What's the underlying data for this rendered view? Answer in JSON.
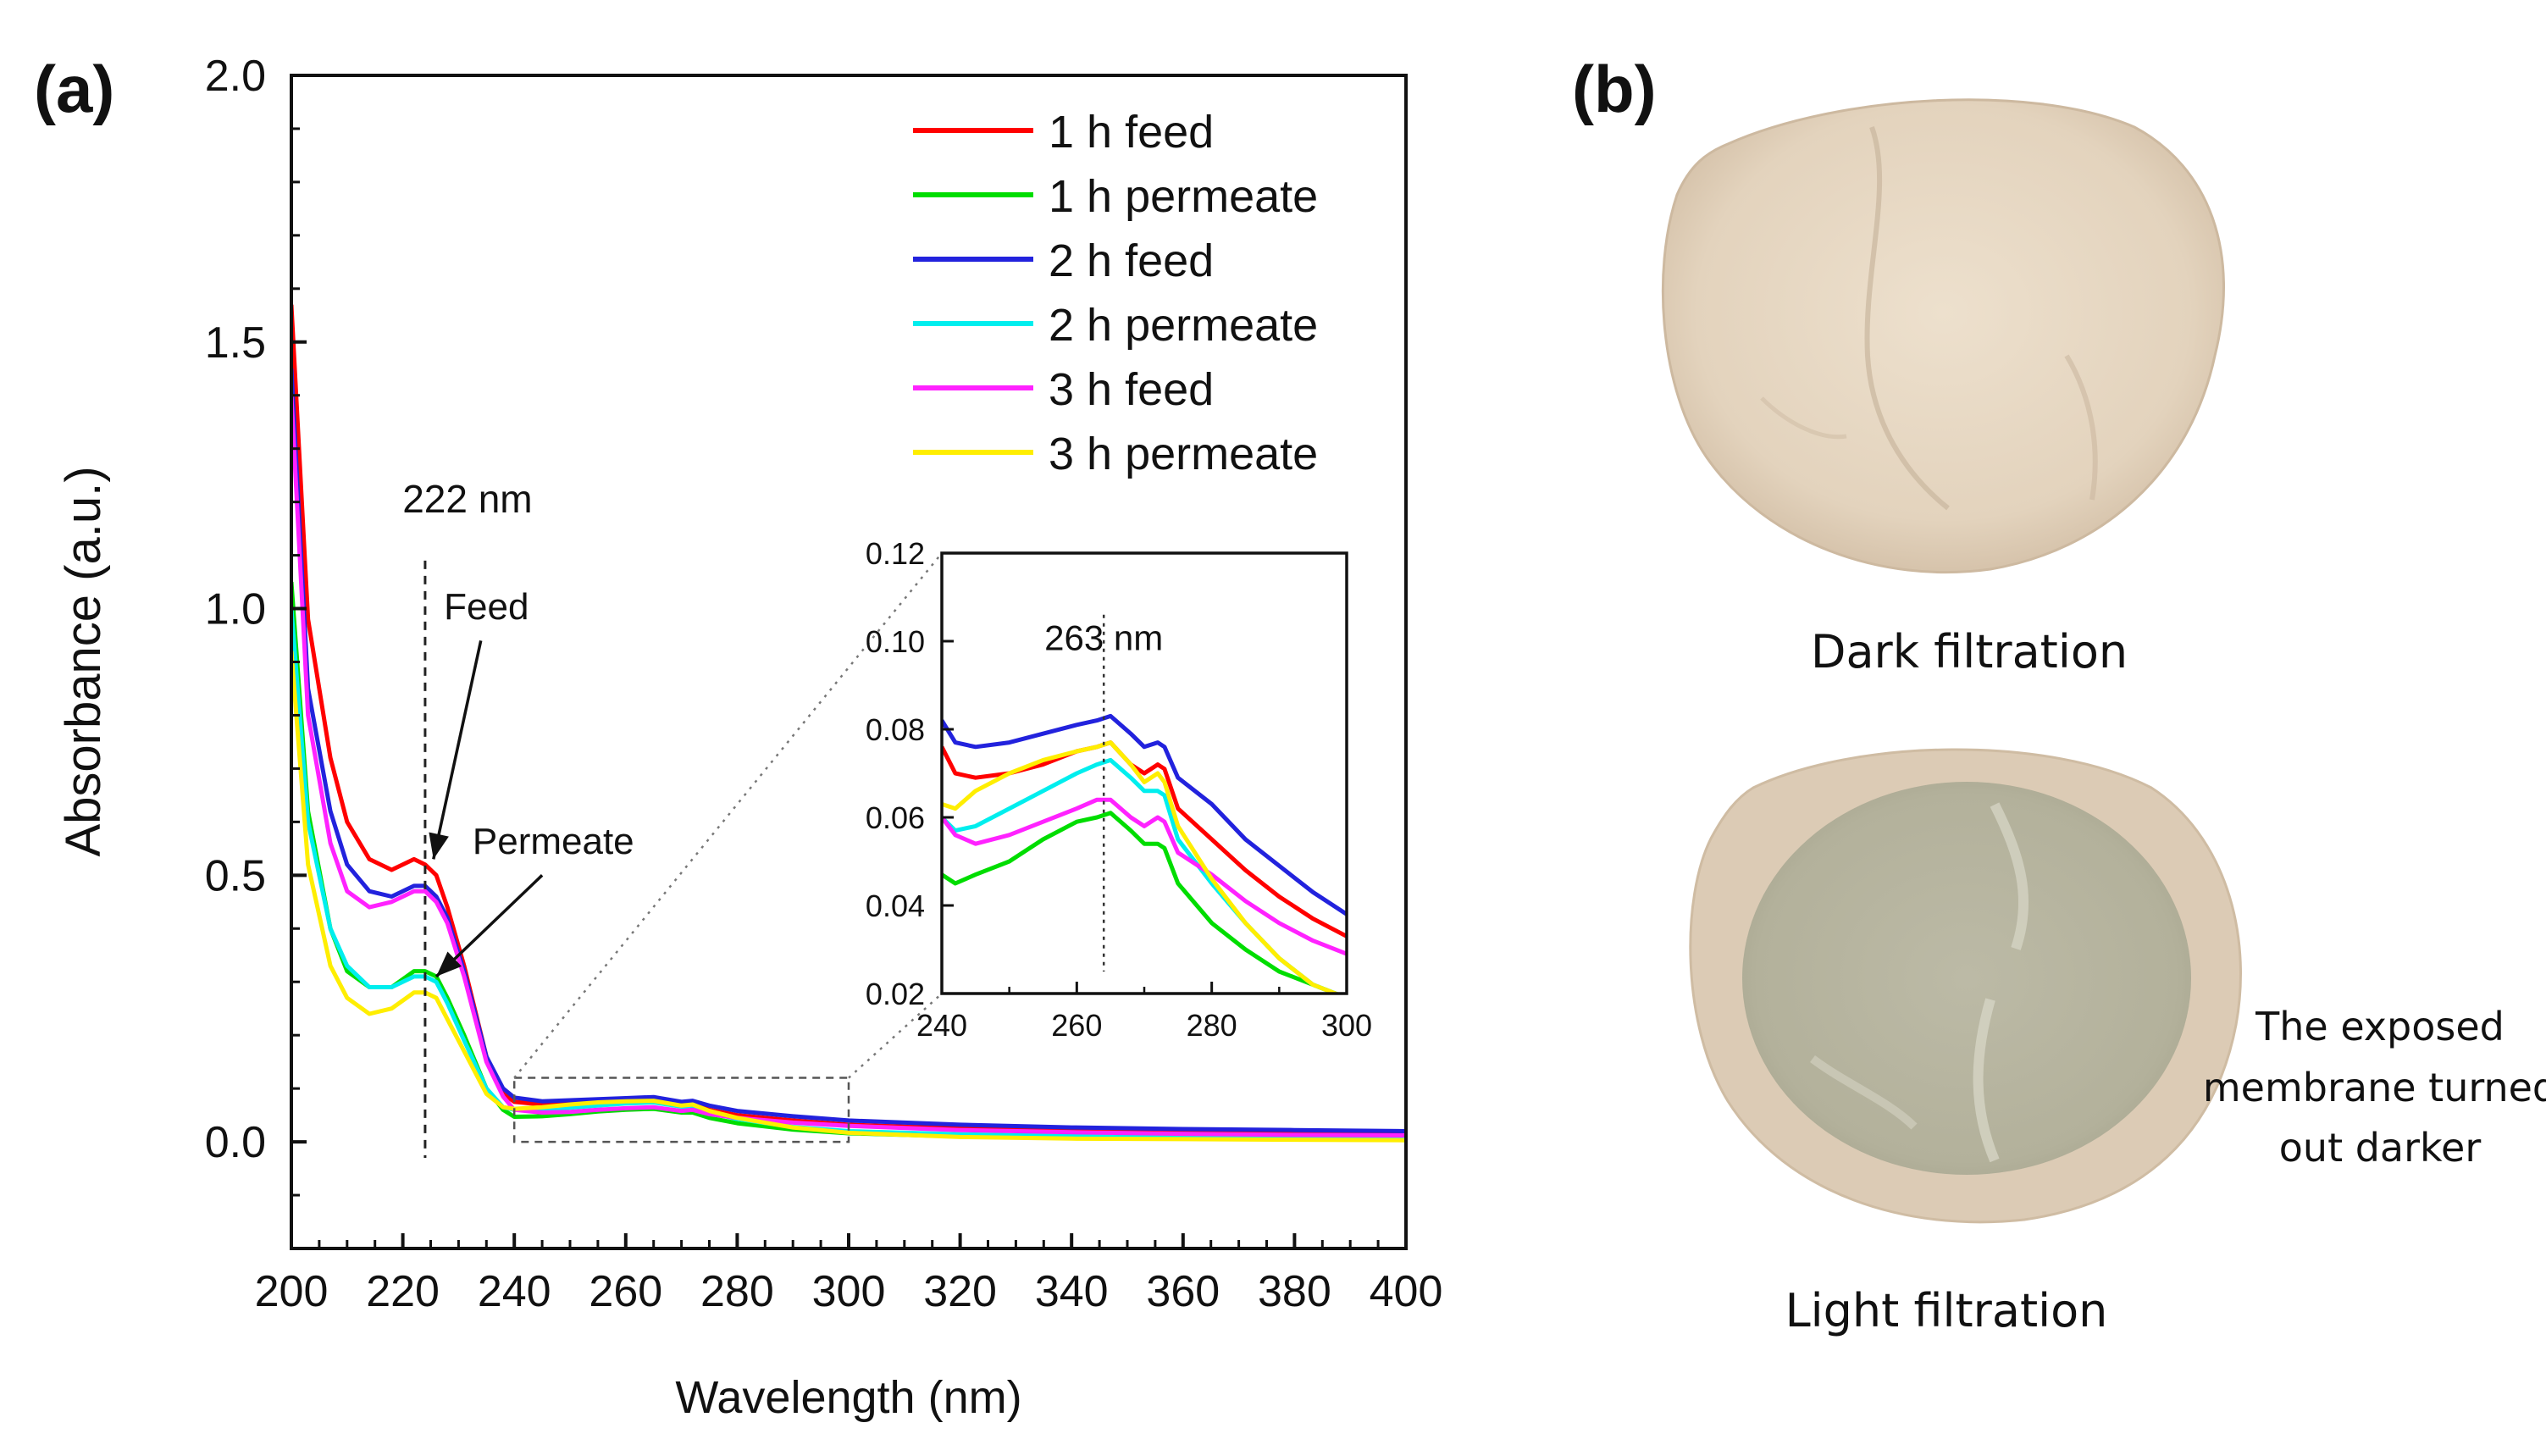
{
  "panel_a_label": "(a)",
  "panel_b_label": "(b)",
  "chart_data": [
    {
      "type": "line",
      "name": "main",
      "xlabel": "Wavelength (nm)",
      "ylabel": "Absorbance (a.u.)",
      "xlim": [
        200,
        400
      ],
      "ylim": [
        -0.2,
        2.0
      ],
      "xticks": [
        200,
        220,
        240,
        260,
        280,
        300,
        320,
        340,
        360,
        380,
        400
      ],
      "yticks": [
        0.0,
        0.5,
        1.0,
        1.5,
        2.0
      ],
      "ytick_labels": [
        "0.0",
        "0.5",
        "1.0",
        "1.5",
        "2.0"
      ],
      "annotations": {
        "peak": "222 nm",
        "peak_x": 224,
        "feed": "Feed",
        "permeate": "Permeate"
      },
      "zoom_box": {
        "x": [
          240,
          300
        ],
        "y": [
          0.0,
          0.12
        ]
      },
      "series": [
        {
          "name": "1 h feed",
          "color": "#ff0000",
          "x": [
            200,
            203,
            207,
            210,
            214,
            218,
            222,
            224,
            226,
            228,
            231,
            235,
            238,
            240,
            245,
            250,
            255,
            260,
            265,
            270,
            272,
            275,
            280,
            290,
            300,
            320,
            340,
            360,
            380,
            400
          ],
          "y": [
            1.57,
            0.98,
            0.72,
            0.6,
            0.53,
            0.51,
            0.53,
            0.52,
            0.5,
            0.44,
            0.33,
            0.16,
            0.09,
            0.075,
            0.07,
            0.072,
            0.075,
            0.076,
            0.078,
            0.07,
            0.072,
            0.06,
            0.05,
            0.04,
            0.032,
            0.025,
            0.021,
            0.019,
            0.017,
            0.015
          ]
        },
        {
          "name": "1 h permeate",
          "color": "#00dd00",
          "x": [
            200,
            203,
            207,
            210,
            214,
            218,
            222,
            224,
            226,
            228,
            231,
            235,
            238,
            240,
            245,
            250,
            255,
            260,
            265,
            270,
            272,
            275,
            280,
            290,
            300,
            320,
            340,
            360,
            380,
            400
          ],
          "y": [
            1.05,
            0.62,
            0.4,
            0.32,
            0.29,
            0.29,
            0.32,
            0.32,
            0.31,
            0.27,
            0.2,
            0.1,
            0.06,
            0.047,
            0.048,
            0.052,
            0.057,
            0.06,
            0.062,
            0.055,
            0.055,
            0.045,
            0.035,
            0.023,
            0.016,
            0.01,
            0.008,
            0.007,
            0.006,
            0.005
          ]
        },
        {
          "name": "2 h feed",
          "color": "#2222dd",
          "x": [
            200,
            203,
            207,
            210,
            214,
            218,
            222,
            224,
            226,
            228,
            231,
            235,
            238,
            240,
            245,
            250,
            255,
            260,
            265,
            270,
            272,
            275,
            280,
            290,
            300,
            320,
            340,
            360,
            380,
            400
          ],
          "y": [
            1.45,
            0.85,
            0.62,
            0.52,
            0.47,
            0.46,
            0.48,
            0.48,
            0.46,
            0.42,
            0.32,
            0.16,
            0.1,
            0.083,
            0.076,
            0.078,
            0.08,
            0.082,
            0.084,
            0.075,
            0.077,
            0.068,
            0.058,
            0.048,
            0.04,
            0.032,
            0.027,
            0.024,
            0.022,
            0.02
          ]
        },
        {
          "name": "2 h permeate",
          "color": "#00eeee",
          "x": [
            200,
            203,
            207,
            210,
            214,
            218,
            222,
            224,
            226,
            228,
            231,
            235,
            238,
            240,
            245,
            250,
            255,
            260,
            265,
            270,
            272,
            275,
            280,
            290,
            300,
            320,
            340,
            360,
            380,
            400
          ],
          "y": [
            1.0,
            0.6,
            0.4,
            0.33,
            0.29,
            0.29,
            0.31,
            0.31,
            0.3,
            0.26,
            0.19,
            0.1,
            0.065,
            0.06,
            0.058,
            0.064,
            0.068,
            0.072,
            0.074,
            0.066,
            0.066,
            0.055,
            0.043,
            0.028,
            0.02,
            0.014,
            0.011,
            0.01,
            0.009,
            0.008
          ]
        },
        {
          "name": "3 h feed",
          "color": "#ff22ff",
          "x": [
            200,
            203,
            207,
            210,
            214,
            218,
            222,
            224,
            226,
            228,
            231,
            235,
            238,
            240,
            245,
            250,
            255,
            260,
            265,
            270,
            272,
            275,
            280,
            290,
            300,
            320,
            340,
            360,
            380,
            400
          ],
          "y": [
            1.4,
            0.8,
            0.56,
            0.47,
            0.44,
            0.45,
            0.47,
            0.47,
            0.45,
            0.41,
            0.31,
            0.15,
            0.085,
            0.06,
            0.055,
            0.056,
            0.06,
            0.063,
            0.065,
            0.058,
            0.06,
            0.052,
            0.045,
            0.036,
            0.03,
            0.022,
            0.018,
            0.015,
            0.013,
            0.012
          ]
        },
        {
          "name": "3 h permeate",
          "color": "#ffee00",
          "x": [
            200,
            203,
            207,
            210,
            214,
            218,
            222,
            224,
            226,
            228,
            231,
            235,
            238,
            240,
            245,
            250,
            255,
            260,
            265,
            270,
            272,
            275,
            280,
            290,
            300,
            320,
            340,
            360,
            380,
            400
          ],
          "y": [
            0.92,
            0.52,
            0.33,
            0.27,
            0.24,
            0.25,
            0.28,
            0.28,
            0.27,
            0.23,
            0.17,
            0.09,
            0.065,
            0.062,
            0.065,
            0.07,
            0.074,
            0.076,
            0.077,
            0.068,
            0.07,
            0.058,
            0.045,
            0.027,
            0.017,
            0.009,
            0.006,
            0.005,
            0.004,
            0.003
          ]
        }
      ]
    },
    {
      "type": "line",
      "name": "inset",
      "xlim": [
        240,
        300
      ],
      "ylim": [
        0.02,
        0.12
      ],
      "xticks": [
        240,
        260,
        280,
        300
      ],
      "yticks": [
        0.02,
        0.04,
        0.06,
        0.08,
        0.1,
        0.12
      ],
      "ytick_labels": [
        "0.02",
        "0.04",
        "0.06",
        "0.08",
        "0.10",
        "0.12"
      ],
      "annotation": "263 nm",
      "annotation_x": 264,
      "series": [
        {
          "name": "1 h feed",
          "color": "#ff0000",
          "x": [
            240,
            242,
            245,
            250,
            255,
            260,
            263,
            265,
            268,
            270,
            272,
            273,
            275,
            280,
            285,
            290,
            295,
            300
          ],
          "y": [
            0.076,
            0.07,
            0.069,
            0.07,
            0.072,
            0.075,
            0.076,
            0.077,
            0.072,
            0.07,
            0.072,
            0.071,
            0.062,
            0.055,
            0.048,
            0.042,
            0.037,
            0.033
          ]
        },
        {
          "name": "1 h permeate",
          "color": "#00dd00",
          "x": [
            240,
            242,
            245,
            250,
            255,
            260,
            263,
            265,
            268,
            270,
            272,
            273,
            275,
            280,
            285,
            290,
            295,
            300
          ],
          "y": [
            0.047,
            0.045,
            0.047,
            0.05,
            0.055,
            0.059,
            0.06,
            0.061,
            0.057,
            0.054,
            0.054,
            0.053,
            0.045,
            0.036,
            0.03,
            0.025,
            0.022,
            0.019
          ]
        },
        {
          "name": "2 h feed",
          "color": "#2222dd",
          "x": [
            240,
            242,
            245,
            250,
            255,
            260,
            263,
            265,
            268,
            270,
            272,
            273,
            275,
            280,
            285,
            290,
            295,
            300
          ],
          "y": [
            0.082,
            0.077,
            0.076,
            0.077,
            0.079,
            0.081,
            0.082,
            0.083,
            0.079,
            0.076,
            0.077,
            0.076,
            0.069,
            0.063,
            0.055,
            0.049,
            0.043,
            0.038
          ]
        },
        {
          "name": "2 h permeate",
          "color": "#00eeee",
          "x": [
            240,
            242,
            245,
            250,
            255,
            260,
            263,
            265,
            268,
            270,
            272,
            273,
            275,
            280,
            285,
            290,
            295,
            300
          ],
          "y": [
            0.06,
            0.057,
            0.058,
            0.062,
            0.066,
            0.07,
            0.072,
            0.073,
            0.069,
            0.066,
            0.066,
            0.065,
            0.055,
            0.045,
            0.036,
            0.028,
            0.022,
            0.019
          ]
        },
        {
          "name": "3 h feed",
          "color": "#ff22ff",
          "x": [
            240,
            242,
            245,
            250,
            255,
            260,
            263,
            265,
            268,
            270,
            272,
            273,
            275,
            280,
            285,
            290,
            295,
            300
          ],
          "y": [
            0.06,
            0.056,
            0.054,
            0.056,
            0.059,
            0.062,
            0.064,
            0.064,
            0.06,
            0.058,
            0.06,
            0.059,
            0.052,
            0.047,
            0.041,
            0.036,
            0.032,
            0.029
          ]
        },
        {
          "name": "3 h permeate",
          "color": "#ffee00",
          "x": [
            240,
            242,
            245,
            250,
            255,
            260,
            263,
            265,
            268,
            270,
            272,
            273,
            275,
            280,
            285,
            290,
            295,
            300
          ],
          "y": [
            0.063,
            0.062,
            0.066,
            0.07,
            0.073,
            0.075,
            0.076,
            0.077,
            0.072,
            0.068,
            0.07,
            0.068,
            0.058,
            0.046,
            0.036,
            0.028,
            0.022,
            0.019
          ]
        }
      ]
    }
  ],
  "photos": {
    "top_caption": "Dark filtration",
    "bottom_caption": "Light filtration",
    "note_lines": [
      "The exposed",
      "membrane turned",
      "out darker"
    ],
    "colors": {
      "rim": "#dccbb5",
      "dark_disc": "#e6d6c1",
      "light_center": "#b9b6a2"
    }
  }
}
